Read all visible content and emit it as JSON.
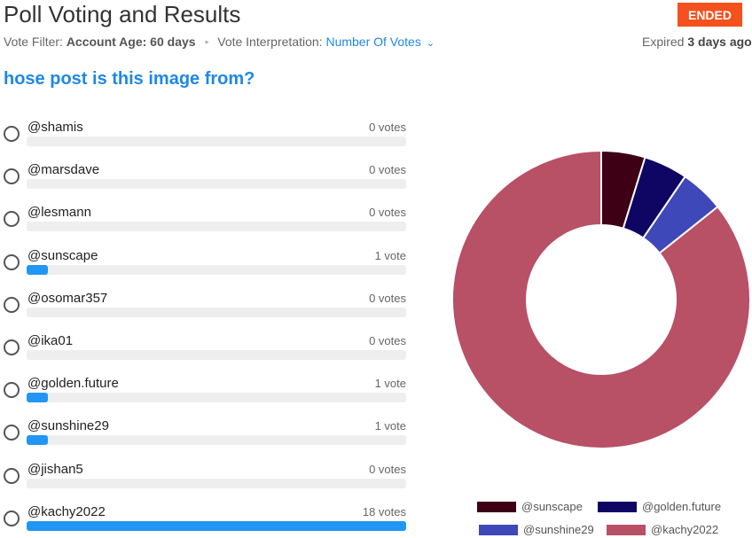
{
  "header": {
    "title": "Poll Voting and Results",
    "status_badge": "ENDED",
    "vote_filter_label": "Vote Filter:",
    "vote_filter_value": "Account Age: 60 days",
    "vote_interpretation_label": "Vote Interpretation:",
    "vote_interpretation_value": "Number Of Votes",
    "expired_label": "Expired",
    "expired_value": "3 days ago"
  },
  "question": "hose post is this image from?",
  "options": [
    {
      "label": "@shamis",
      "votes_text": "0 votes",
      "votes": 0
    },
    {
      "label": "@marsdave",
      "votes_text": "0 votes",
      "votes": 0
    },
    {
      "label": "@lesmann",
      "votes_text": "0 votes",
      "votes": 0
    },
    {
      "label": "@sunscape",
      "votes_text": "1 vote",
      "votes": 1
    },
    {
      "label": "@osomar357",
      "votes_text": "0 votes",
      "votes": 0
    },
    {
      "label": "@ika01",
      "votes_text": "0 votes",
      "votes": 0
    },
    {
      "label": "@golden.future",
      "votes_text": "1 vote",
      "votes": 1
    },
    {
      "label": "@sunshine29",
      "votes_text": "1 vote",
      "votes": 1
    },
    {
      "label": "@jishan5",
      "votes_text": "0 votes",
      "votes": 0
    },
    {
      "label": "@kachy2022",
      "votes_text": "18 votes",
      "votes": 18
    }
  ],
  "colors": {
    "accent": "#1e88e5",
    "badge": "#f4511e",
    "bar_fill": "#2196f3"
  },
  "chart_data": {
    "type": "pie",
    "donut": true,
    "categories": [
      "@sunscape",
      "@golden.future",
      "@sunshine29",
      "@kachy2022"
    ],
    "values": [
      1,
      1,
      1,
      18
    ],
    "colors": [
      "#3d0014",
      "#0f0563",
      "#3f48b8",
      "#b85066"
    ],
    "legend_position": "bottom"
  }
}
